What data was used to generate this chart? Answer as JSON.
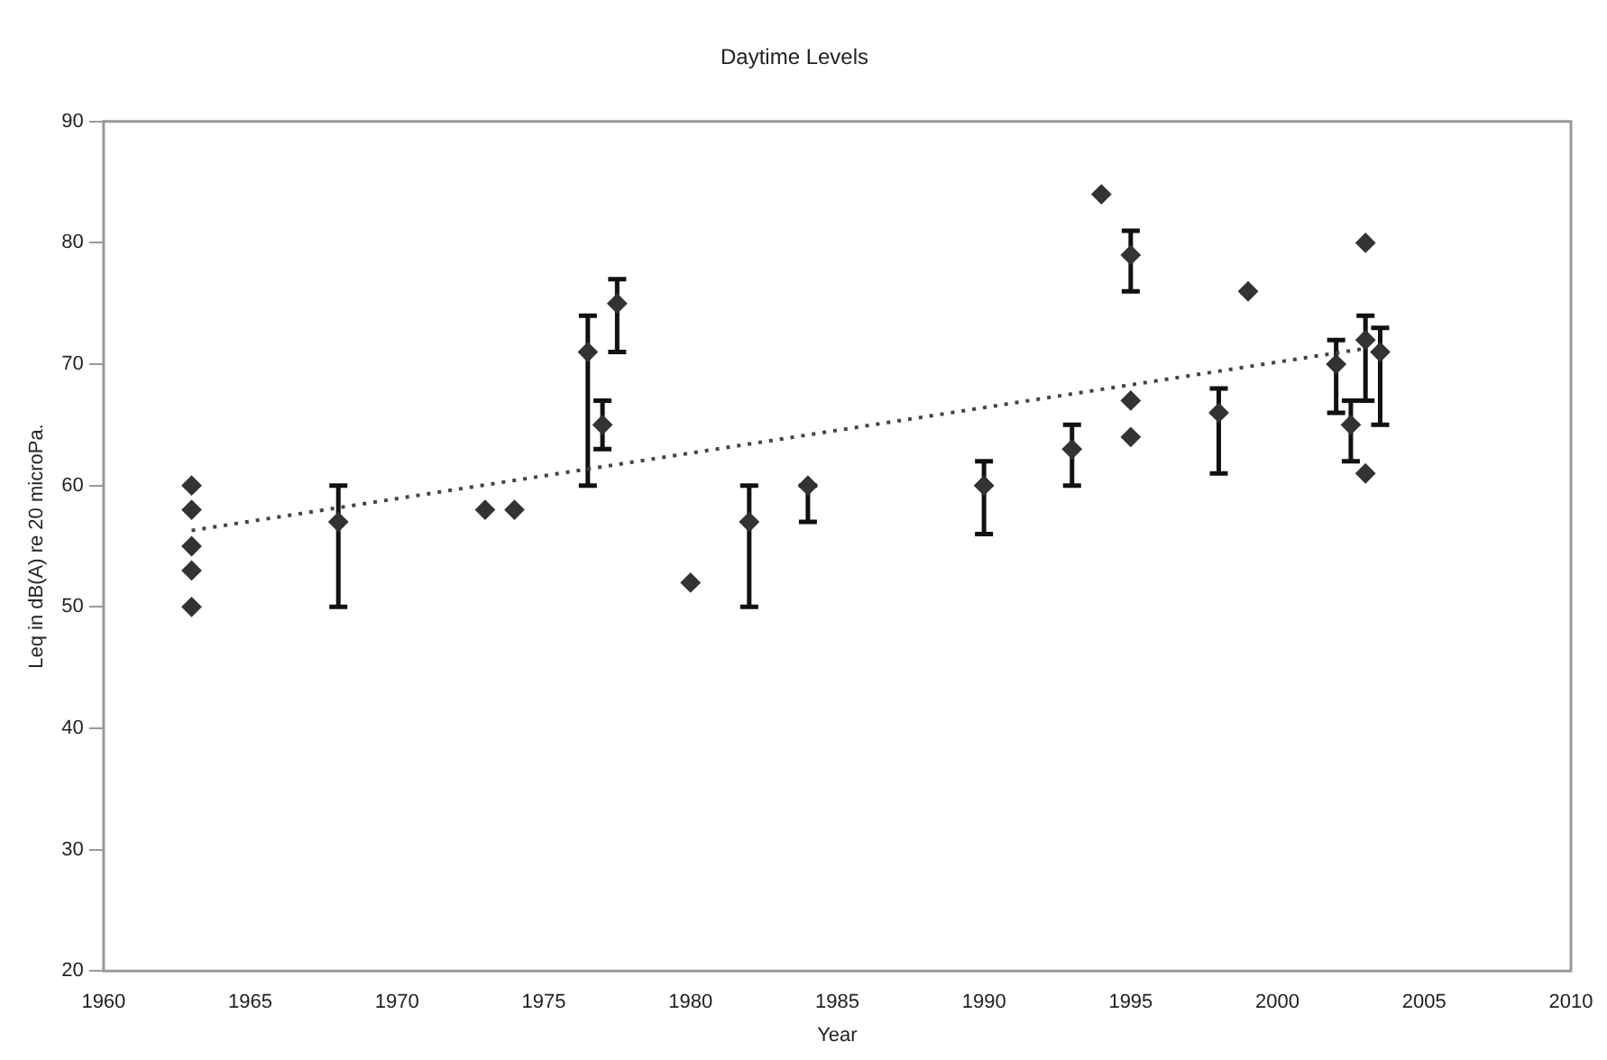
{
  "chart_data": {
    "type": "scatter",
    "title": "Daytime Levels",
    "xlabel": "Year",
    "ylabel": "Leq in dB(A) re 20 microPa.",
    "xlim": [
      1960,
      2010
    ],
    "xticks": [
      1960,
      1965,
      1970,
      1975,
      1980,
      1985,
      1990,
      1995,
      2000,
      2005,
      2010
    ],
    "ylim": [
      20,
      90
    ],
    "yticks": [
      20,
      30,
      40,
      50,
      60,
      70,
      80,
      90
    ],
    "grid": false,
    "legend": false,
    "marker": "diamond",
    "series": [
      {
        "color": "#333333",
        "x": [
          1963,
          1963,
          1963,
          1963,
          1963,
          1968,
          1973,
          1974,
          1976.5,
          1977,
          1977.5,
          1980,
          1982,
          1984,
          1990,
          1993,
          1994,
          1995,
          1995,
          1995,
          1998,
          1999,
          2002,
          2002.5,
          2003,
          2003,
          2003,
          2003.5
        ],
        "values": [
          60,
          58,
          55,
          53,
          50,
          57,
          58,
          58,
          71,
          65,
          75,
          52,
          57,
          60,
          60,
          63,
          84,
          79,
          67,
          64,
          66,
          76,
          70,
          65,
          72,
          80,
          61,
          71
        ],
        "errors": [
          null,
          null,
          null,
          null,
          null,
          [
            50,
            60
          ],
          null,
          null,
          [
            60,
            74
          ],
          [
            63,
            67
          ],
          [
            71,
            77
          ],
          null,
          [
            50,
            60
          ],
          [
            57,
            60
          ],
          [
            56,
            62
          ],
          [
            60,
            65
          ],
          null,
          [
            76,
            81
          ],
          null,
          null,
          [
            61,
            68
          ],
          null,
          [
            66,
            72
          ],
          [
            62,
            67
          ],
          [
            67,
            74
          ],
          null,
          null,
          [
            65,
            73
          ]
        ]
      },
      {
        "type": "line",
        "color": "#444444",
        "line_style": "dotted",
        "marker": "none",
        "x": [
          1963,
          2003
        ],
        "values": [
          56.3,
          71.3
        ]
      }
    ]
  }
}
